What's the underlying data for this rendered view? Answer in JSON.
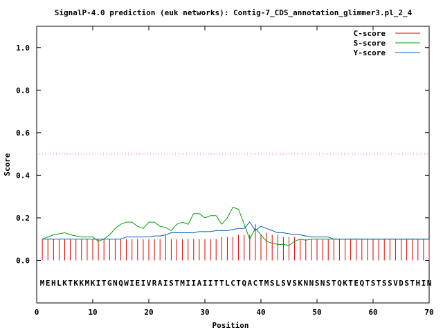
{
  "chart_data": {
    "type": "line",
    "title": "SignalP-4.0 prediction (euk networks): Contig-7_CDS_annotation_glimmer3.pl_2_4",
    "xlabel": "Position",
    "ylabel": "Score",
    "xlim": [
      0,
      70
    ],
    "ylim": [
      -0.2,
      1.1
    ],
    "xticks": [
      0,
      10,
      20,
      30,
      40,
      50,
      60,
      70
    ],
    "yticks": [
      0.0,
      0.2,
      0.4,
      0.6,
      0.8,
      1.0
    ],
    "xtick_labels": [
      "0",
      "10",
      "20",
      "30",
      "40",
      "50",
      "60",
      "70"
    ],
    "ytick_labels": [
      "0.0",
      "0.2",
      "0.4",
      "0.6",
      "0.8",
      "1.0"
    ],
    "threshold": 0.5,
    "legend_position": "top-right",
    "grid": false,
    "sequence": "MEHLKTKKMKITGNQWIEIVRAISTMIIAIITTLCTQACTMSLSVSKNNSNSTQKTEQTSTSSVDSTHIN",
    "series": [
      {
        "name": "C-score",
        "style": "impulse",
        "color": "#d40000",
        "values": [
          0.1,
          0.1,
          0.1,
          0.1,
          0.1,
          0.1,
          0.1,
          0.1,
          0.1,
          0.1,
          0.1,
          0.1,
          0.1,
          0.1,
          0.1,
          0.1,
          0.1,
          0.1,
          0.1,
          0.1,
          0.1,
          0.1,
          0.12,
          0.1,
          0.1,
          0.1,
          0.1,
          0.1,
          0.1,
          0.1,
          0.1,
          0.1,
          0.11,
          0.11,
          0.11,
          0.12,
          0.12,
          0.12,
          0.17,
          0.12,
          0.13,
          0.12,
          0.12,
          0.11,
          0.11,
          0.11,
          0.1,
          0.1,
          0.1,
          0.1,
          0.1,
          0.1,
          0.1,
          0.1,
          0.1,
          0.1,
          0.1,
          0.1,
          0.1,
          0.1,
          0.1,
          0.1,
          0.1,
          0.1,
          0.1,
          0.1,
          0.1,
          0.1,
          0.1,
          0.1
        ]
      },
      {
        "name": "S-score",
        "style": "line",
        "color": "#00a000",
        "values": [
          0.1,
          0.11,
          0.12,
          0.125,
          0.13,
          0.12,
          0.115,
          0.11,
          0.11,
          0.11,
          0.09,
          0.1,
          0.12,
          0.15,
          0.17,
          0.18,
          0.18,
          0.16,
          0.15,
          0.18,
          0.18,
          0.16,
          0.155,
          0.14,
          0.17,
          0.18,
          0.17,
          0.22,
          0.22,
          0.2,
          0.21,
          0.21,
          0.17,
          0.2,
          0.25,
          0.24,
          0.17,
          0.1,
          0.15,
          0.12,
          0.09,
          0.08,
          0.075,
          0.075,
          0.07,
          0.09,
          0.1,
          0.095,
          0.1,
          0.1,
          0.1,
          0.1,
          0.1,
          0.1,
          0.1,
          0.1,
          0.1,
          0.1,
          0.1,
          0.1,
          0.1,
          0.1,
          0.1,
          0.1,
          0.1,
          0.1,
          0.1,
          0.1,
          0.1,
          0.1
        ]
      },
      {
        "name": "Y-score",
        "style": "line",
        "color": "#0060c0",
        "values": [
          0.1,
          0.1,
          0.1,
          0.1,
          0.1,
          0.1,
          0.1,
          0.1,
          0.1,
          0.1,
          0.1,
          0.1,
          0.1,
          0.1,
          0.1,
          0.11,
          0.11,
          0.11,
          0.11,
          0.11,
          0.115,
          0.115,
          0.12,
          0.13,
          0.13,
          0.13,
          0.13,
          0.13,
          0.135,
          0.135,
          0.135,
          0.14,
          0.14,
          0.14,
          0.145,
          0.15,
          0.15,
          0.18,
          0.14,
          0.16,
          0.15,
          0.14,
          0.13,
          0.13,
          0.125,
          0.12,
          0.12,
          0.115,
          0.11,
          0.11,
          0.11,
          0.11,
          0.1,
          0.1,
          0.1,
          0.1,
          0.1,
          0.1,
          0.1,
          0.1,
          0.1,
          0.1,
          0.1,
          0.1,
          0.1,
          0.1,
          0.1,
          0.1,
          0.1,
          0.1
        ]
      }
    ]
  }
}
